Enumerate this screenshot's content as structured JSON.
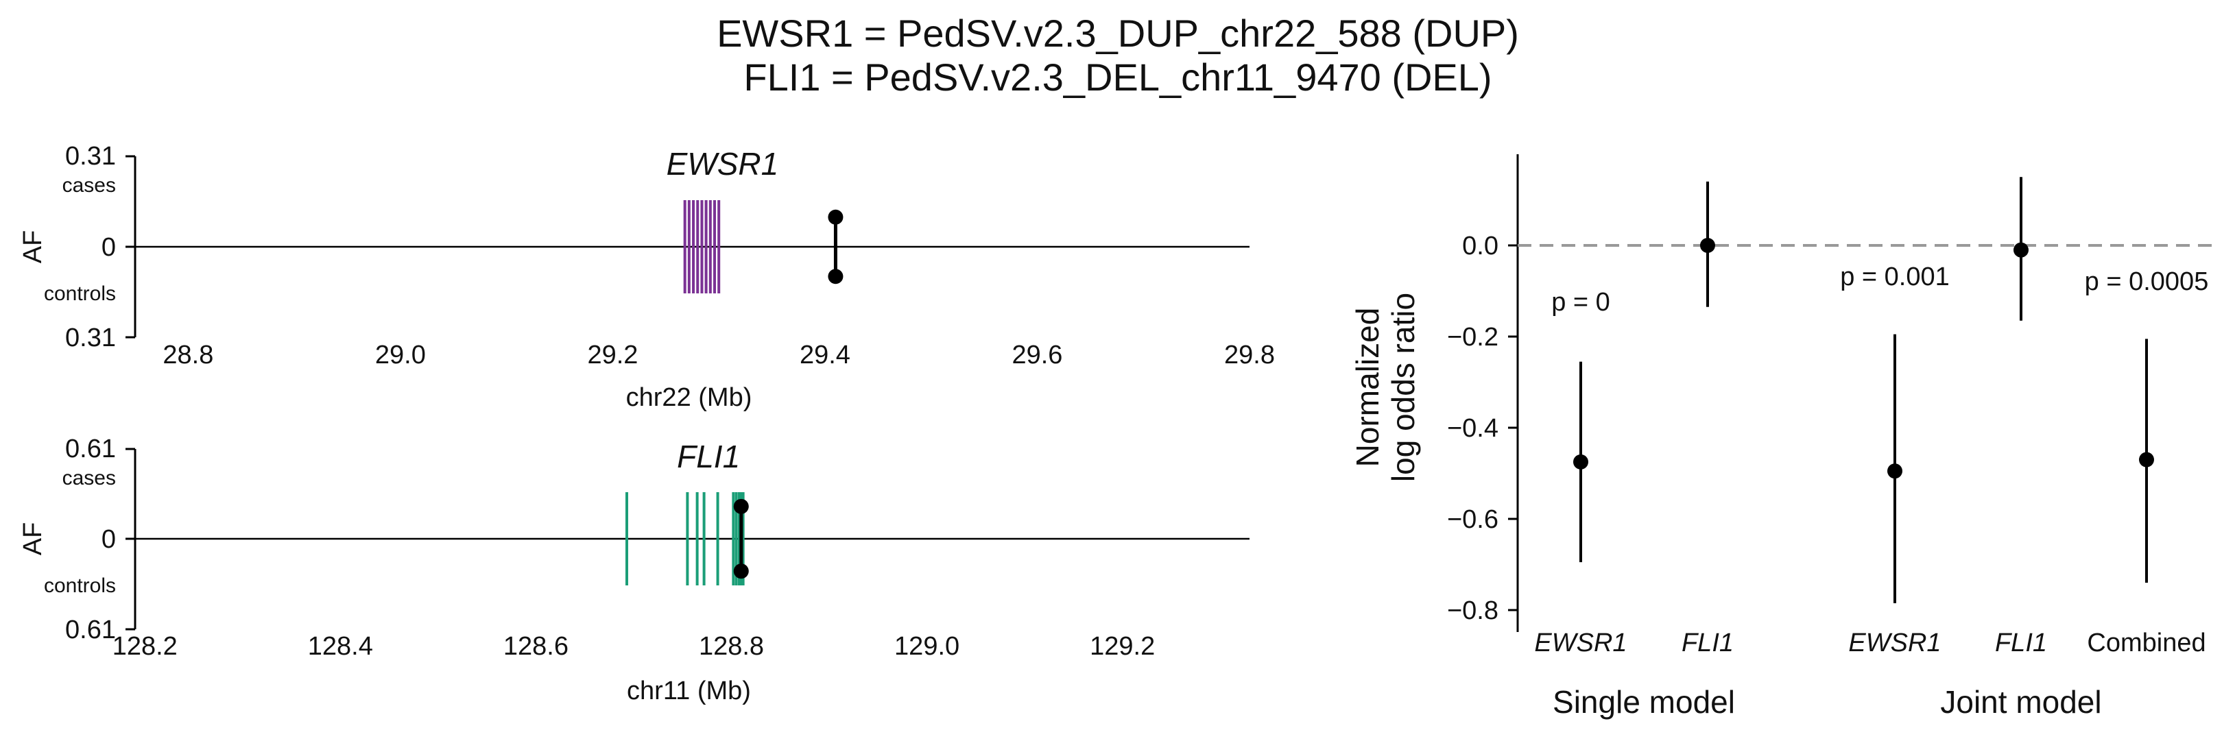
{
  "title": [
    "EWSR1 = PedSV.v2.3_DUP_chr22_588 (DUP)",
    "FLI1 = PedSV.v2.3_DEL_chr11_9470 (DEL)"
  ],
  "chart_data": [
    {
      "type": "scatter",
      "gene": "EWSR1",
      "xlabel": "chr22 (Mb)",
      "ylabel": "AF",
      "y_top_label": "cases",
      "y_bottom_label": "controls",
      "y_top_tick": "0.31",
      "y_zero_tick": "0",
      "y_bottom_tick": "0.31",
      "xlim": [
        28.75,
        29.8
      ],
      "x_ticks": [
        28.8,
        29.0,
        29.2,
        29.4,
        29.6,
        29.8
      ],
      "x_tick_labels": [
        "28.8",
        "29.0",
        "29.2",
        "29.4",
        "29.6",
        "29.8"
      ],
      "gene_color": "#7b3294",
      "exons": [
        29.268,
        29.272,
        29.276,
        29.28,
        29.284,
        29.288,
        29.292,
        29.296,
        29.3
      ],
      "variant": {
        "x": 29.41,
        "case_af": 0.14,
        "control_af": 0.14
      }
    },
    {
      "type": "scatter",
      "gene": "FLI1",
      "xlabel": "chr11 (Mb)",
      "ylabel": "AF",
      "y_top_label": "cases",
      "y_bottom_label": "controls",
      "y_top_tick": "0.61",
      "y_zero_tick": "0",
      "y_bottom_tick": "0.61",
      "xlim": [
        128.19,
        129.33
      ],
      "x_ticks": [
        128.2,
        128.4,
        128.6,
        128.8,
        129.0,
        129.2
      ],
      "x_tick_labels": [
        "128.2",
        "128.4",
        "128.6",
        "128.8",
        "129.0",
        "129.2"
      ],
      "gene_color": "#1b9e77",
      "exons": [
        128.693,
        128.755,
        128.765,
        128.772,
        128.786,
        128.802,
        128.805,
        128.808,
        128.81,
        128.812
      ],
      "variant": {
        "x": 128.81,
        "case_af": 0.18,
        "control_af": 0.18
      }
    },
    {
      "type": "scatter",
      "ylabel": "Normalized\nlog odds ratio",
      "ylim": [
        -0.82,
        0.2
      ],
      "y_ticks": [
        0.0,
        -0.2,
        -0.4,
        -0.6,
        -0.8
      ],
      "y_tick_labels": [
        "0.0",
        "−0.2",
        "−0.4",
        "−0.6",
        "−0.8"
      ],
      "reference_line": 0,
      "groups": [
        {
          "label": "Single model",
          "p_label": "p = 0"
        },
        {
          "label": "Joint model",
          "p_label": "p = 0.001"
        }
      ],
      "combined_p_label": "p = 0.0005",
      "points": [
        {
          "label": "EWSR1",
          "group": "Single model",
          "italic": true,
          "value": -0.475,
          "low": -0.695,
          "high": -0.255
        },
        {
          "label": "FLI1",
          "group": "Single model",
          "italic": true,
          "value": 0.0,
          "low": -0.135,
          "high": 0.14
        },
        {
          "label": "EWSR1",
          "group": "Joint model",
          "italic": true,
          "value": -0.495,
          "low": -0.785,
          "high": -0.195
        },
        {
          "label": "FLI1",
          "group": "Joint model",
          "italic": true,
          "value": -0.01,
          "low": -0.165,
          "high": 0.15
        },
        {
          "label": "Combined",
          "group": "Joint model",
          "italic": false,
          "value": -0.47,
          "low": -0.74,
          "high": -0.205
        }
      ]
    }
  ]
}
